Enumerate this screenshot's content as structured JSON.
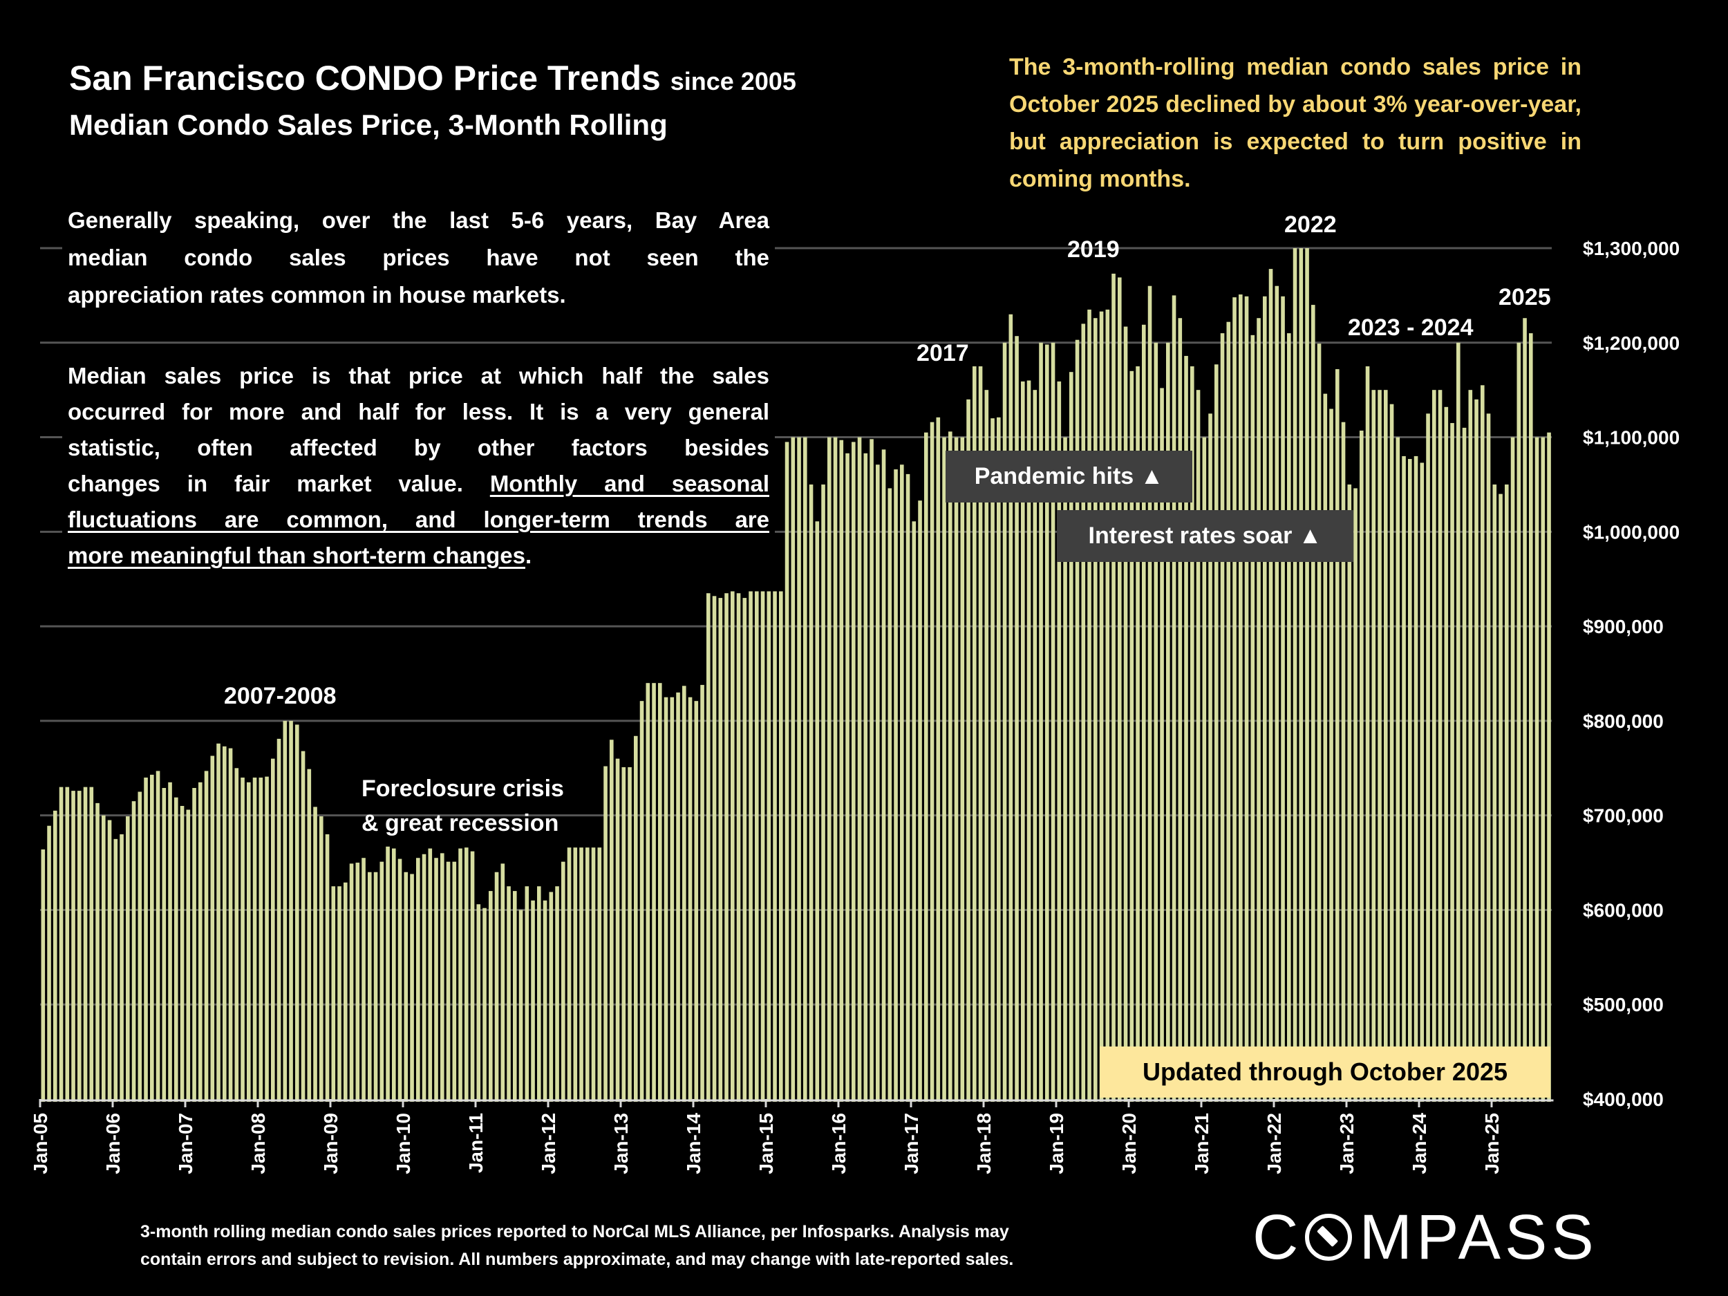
{
  "header": {
    "title": "San Francisco CONDO Price Trends",
    "title_suffix": "since 2005",
    "subtitle": "Median Condo Sales Price, 3-Month Rolling"
  },
  "callout": "The 3-month-rolling median condo sales price in October 2025 declined by about 3% year-over-year, but appreciation is expected to turn positive in coming months.",
  "paragraph1_lines": [
    "Generally speaking, over the last 5-6 years, Bay Area",
    "median condo sales prices have not seen the",
    "appreciation rates common in house markets."
  ],
  "paragraph2": {
    "line1": "Median sales price is that price at which half the sales",
    "line2": "occurred for more and half for less. It is a very general",
    "line3": "statistic, often affected by other factors besides",
    "line4_plain": "changes in fair market value. ",
    "line4_underlined": "Monthly and seasonal",
    "line5_underlined": "fluctuations are common, and longer-term trends are",
    "line6_underlined": "more meaningful than short-term changes",
    "line6_end": "."
  },
  "annotations": {
    "a2007": "2007-2008",
    "foreclosure_1": "Foreclosure crisis",
    "foreclosure_2": "& great recession",
    "a2017": "2017",
    "a2019": "2019",
    "a2022": "2022",
    "a2023": "2023 - 2024",
    "a2025": "2025",
    "pandemic": "Pandemic hits ▲",
    "rates": "Interest rates soar ▲",
    "updated": "Updated through October 2025"
  },
  "footer": {
    "line1": "3-month rolling median condo sales prices reported to NorCal MLS Alliance, per Infosparks. Analysis may",
    "line2": "contain errors and subject to revision. All numbers approximate, and may change with late-reported sales."
  },
  "logo": {
    "text": "COMPASS"
  },
  "colors": {
    "bar": "#d6dda0",
    "gridline": "#555555",
    "callout": "#f7d774",
    "note_box": "#3f3f3f",
    "updated_box": "#fde79c"
  },
  "chart_data": {
    "type": "bar",
    "title": "San Francisco CONDO Price Trends since 2005",
    "subtitle": "Median Condo Sales Price, 3-Month Rolling",
    "x_range": [
      "Jan-05",
      "Oct-25"
    ],
    "x_interval": "monthly",
    "x_tick_labels": [
      "Jan-05",
      "Jan-06",
      "Jan-07",
      "Jan-08",
      "Jan-09",
      "Jan-10",
      "Jan-11",
      "Jan-12",
      "Jan-13",
      "Jan-14",
      "Jan-15",
      "Jan-16",
      "Jan-17",
      "Jan-18",
      "Jan-19",
      "Jan-20",
      "Jan-21",
      "Jan-22",
      "Jan-23",
      "Jan-24",
      "Jan-25"
    ],
    "y_tick_labels": [
      "$400,000",
      "$500,000",
      "$600,000",
      "$700,000",
      "$800,000",
      "$900,000",
      "$1,000,000",
      "$1,100,000",
      "$1,200,000",
      "$1,300,000"
    ],
    "ylim": [
      400000,
      1300000
    ],
    "y_axis_side": "right",
    "grid": true,
    "values": [
      664000,
      689000,
      705000,
      730000,
      730000,
      726000,
      726000,
      730000,
      730000,
      713000,
      700000,
      695000,
      675000,
      680000,
      699000,
      715000,
      725000,
      740000,
      743000,
      747000,
      729000,
      735000,
      719000,
      710000,
      706000,
      729000,
      735000,
      747000,
      763000,
      776000,
      773000,
      771000,
      750000,
      740000,
      735000,
      740000,
      740000,
      741000,
      760000,
      781000,
      800000,
      800000,
      796000,
      768000,
      749000,
      709000,
      699000,
      680000,
      625000,
      625000,
      629000,
      649000,
      650000,
      655000,
      640000,
      640000,
      651000,
      667000,
      665000,
      654000,
      640000,
      638000,
      655000,
      659000,
      665000,
      655000,
      660000,
      651000,
      651000,
      665000,
      666000,
      662000,
      606000,
      602000,
      620000,
      640000,
      649000,
      625000,
      620000,
      600000,
      625000,
      610000,
      625000,
      610000,
      619000,
      625000,
      651000,
      666000,
      666000,
      666000,
      666000,
      666000,
      666000,
      752000,
      780000,
      760000,
      751000,
      751000,
      784000,
      821000,
      840000,
      840000,
      840000,
      825000,
      825000,
      830000,
      837000,
      825000,
      821000,
      838000,
      935000,
      932000,
      930000,
      935000,
      937000,
      935000,
      930000,
      937000,
      937000,
      937000,
      937000,
      937000,
      937000,
      1095000,
      1100000,
      1100000,
      1100000,
      1050000,
      1011000,
      1050000,
      1100000,
      1100000,
      1097000,
      1083000,
      1095000,
      1100000,
      1083000,
      1098000,
      1071000,
      1087000,
      1046000,
      1066000,
      1071000,
      1061000,
      1011000,
      1033000,
      1105000,
      1116000,
      1121000,
      1100000,
      1106000,
      1100000,
      1100000,
      1140000,
      1175000,
      1175000,
      1150000,
      1120000,
      1121000,
      1200000,
      1230000,
      1207000,
      1159000,
      1160000,
      1150000,
      1200000,
      1198000,
      1200000,
      1159000,
      1100000,
      1169000,
      1203000,
      1220000,
      1235000,
      1226000,
      1233000,
      1235000,
      1273000,
      1269000,
      1217000,
      1170000,
      1175000,
      1219000,
      1260000,
      1200000,
      1152000,
      1200000,
      1250000,
      1226000,
      1186000,
      1175000,
      1150000,
      1100000,
      1125000,
      1177000,
      1210000,
      1222000,
      1248000,
      1251000,
      1249000,
      1208000,
      1226000,
      1249000,
      1278000,
      1260000,
      1249000,
      1210000,
      1300000,
      1300000,
      1300000,
      1240000,
      1199000,
      1146000,
      1130000,
      1172000,
      1116000,
      1050000,
      1046000,
      1107000,
      1175000,
      1150000,
      1150000,
      1150000,
      1135000,
      1100000,
      1080000,
      1077000,
      1080000,
      1073000,
      1125000,
      1150000,
      1150000,
      1132000,
      1115000,
      1200000,
      1110000,
      1150000,
      1140000,
      1155000,
      1125000,
      1050000,
      1040000,
      1050000,
      1100000,
      1200000,
      1226000,
      1210000,
      1100000,
      1100000,
      1105000
    ]
  }
}
